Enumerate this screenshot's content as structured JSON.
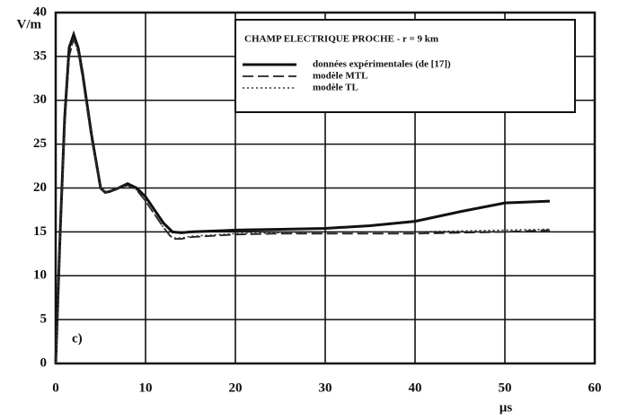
{
  "chart_data": {
    "type": "line",
    "title": "CHAMP ELECTRIQUE PROCHE - r = 9 km",
    "y_label": "V/m",
    "x_label": "µs",
    "annotation": "c)",
    "x": [
      0,
      0.5,
      1,
      1.5,
      2,
      2.5,
      3,
      4,
      5,
      5.5,
      6,
      7,
      8,
      9,
      10,
      11,
      12,
      13,
      14,
      15,
      20,
      25,
      30,
      35,
      40,
      45,
      50,
      55
    ],
    "series": [
      {
        "name": "données expérimentales (de [17])",
        "color": "#111111",
        "style": "solid",
        "values": [
          0,
          15,
          28,
          36,
          37.5,
          36,
          33,
          26,
          20,
          19.5,
          19.6,
          20,
          20.5,
          20,
          19,
          17.5,
          16,
          15,
          14.9,
          15,
          15.2,
          15.3,
          15.4,
          15.7,
          16.2,
          17.3,
          18.3,
          18.5
        ]
      },
      {
        "name": "modèle MTL",
        "color": "#222222",
        "style": "dashed",
        "values": [
          0,
          14,
          27,
          35,
          37,
          35.5,
          32.5,
          25.5,
          20,
          19.5,
          19.6,
          20,
          20.3,
          19.8,
          18.5,
          17,
          15.5,
          14.2,
          14.2,
          14.4,
          14.7,
          14.8,
          14.8,
          14.8,
          14.8,
          14.9,
          15,
          15.2
        ]
      },
      {
        "name": "modèle TL",
        "color": "#333333",
        "style": "dotted",
        "values": [
          0,
          14,
          27,
          35,
          37,
          35.5,
          32.5,
          25.5,
          20,
          19.5,
          19.6,
          20,
          20.3,
          19.8,
          18.5,
          17,
          15.5,
          14.3,
          14.3,
          14.5,
          14.8,
          14.9,
          15,
          15,
          15,
          15.1,
          15.2,
          15.3
        ]
      }
    ],
    "xlim": [
      0,
      60
    ],
    "ylim": [
      0,
      40
    ],
    "xticks": [
      0,
      10,
      20,
      30,
      40,
      50,
      60
    ],
    "yticks": [
      0,
      5,
      10,
      15,
      20,
      25,
      30,
      35,
      40
    ],
    "grid": true,
    "legend": "upper right"
  }
}
